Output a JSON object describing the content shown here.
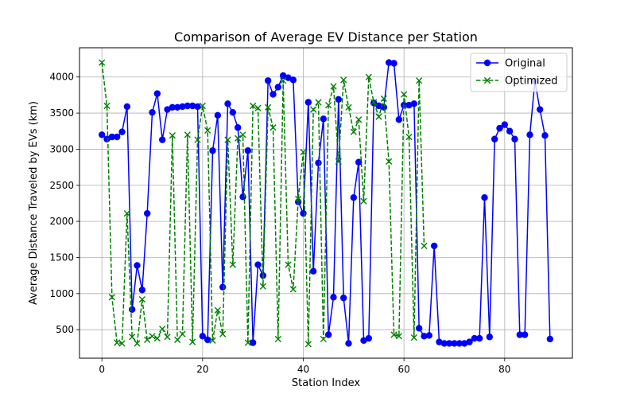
{
  "chart_data": {
    "type": "line",
    "title": "Comparison of Average EV Distance per Station",
    "xlabel": "Station Index",
    "ylabel": "Average Distance Traveled by EVs (km)",
    "xlim": [
      -4.45,
      93.45
    ],
    "ylim": [
      105,
      4405
    ],
    "xticks": [
      0,
      20,
      40,
      60,
      80
    ],
    "yticks": [
      500,
      1000,
      1500,
      2000,
      2500,
      3000,
      3500,
      4000
    ],
    "grid": true,
    "legend_position": "upper right",
    "series": [
      {
        "name": "Original",
        "color": "#0000ff",
        "linestyle": "solid",
        "marker": "circle",
        "x": [
          0,
          1,
          2,
          3,
          4,
          5,
          6,
          7,
          8,
          9,
          10,
          11,
          12,
          13,
          14,
          15,
          16,
          17,
          18,
          19,
          20,
          21,
          22,
          23,
          24,
          25,
          26,
          27,
          28,
          29,
          30,
          31,
          32,
          33,
          34,
          35,
          36,
          37,
          38,
          39,
          40,
          41,
          42,
          43,
          44,
          45,
          46,
          47,
          48,
          49,
          50,
          51,
          52,
          53,
          54,
          55,
          56,
          57,
          58,
          59,
          60,
          61,
          62,
          63,
          64,
          65,
          66,
          67,
          68,
          69,
          70,
          71,
          72,
          73,
          74,
          75,
          76,
          77,
          78,
          79,
          80,
          81,
          82,
          83,
          84,
          85,
          86,
          87,
          88,
          89
        ],
        "values": [
          3200,
          3140,
          3170,
          3170,
          3240,
          3590,
          780,
          1390,
          1050,
          2110,
          3510,
          3770,
          3130,
          3550,
          3580,
          3580,
          3590,
          3600,
          3600,
          3590,
          410,
          360,
          2980,
          3470,
          1090,
          3630,
          3510,
          3300,
          2340,
          2980,
          320,
          1400,
          1250,
          3950,
          3760,
          3860,
          4020,
          3990,
          3960,
          2270,
          2110,
          3650,
          1310,
          2810,
          3420,
          430,
          950,
          3690,
          940,
          310,
          2330,
          2820,
          350,
          380,
          3640,
          3600,
          3580,
          4200,
          4190,
          3410,
          3610,
          3610,
          3630,
          520,
          410,
          420,
          1660,
          330,
          310,
          310,
          310,
          310,
          310,
          330,
          380,
          380,
          2330,
          400,
          3140,
          3290,
          3340,
          3250,
          3140,
          430,
          430,
          3200,
          3940,
          3550,
          3190,
          370
        ]
      },
      {
        "name": "Optimized",
        "color": "#008000",
        "linestyle": "dashed",
        "marker": "x",
        "x": [
          0,
          1,
          2,
          3,
          4,
          5,
          6,
          7,
          8,
          9,
          10,
          11,
          12,
          13,
          14,
          15,
          16,
          17,
          18,
          19,
          20,
          21,
          22,
          23,
          24,
          25,
          26,
          27,
          28,
          29,
          30,
          31,
          32,
          33,
          34,
          35,
          36,
          37,
          38,
          39,
          40,
          41,
          42,
          43,
          44,
          45,
          46,
          47,
          48,
          49,
          50,
          51,
          52,
          53,
          54,
          55,
          56,
          57,
          58,
          59,
          60,
          61,
          62,
          63,
          64
        ],
        "values": [
          4200,
          3600,
          950,
          320,
          310,
          2110,
          400,
          310,
          920,
          360,
          410,
          380,
          510,
          400,
          3190,
          360,
          440,
          3200,
          330,
          3130,
          3600,
          3260,
          350,
          770,
          440,
          3130,
          1400,
          3150,
          3200,
          320,
          3600,
          3570,
          1100,
          3580,
          3300,
          370,
          3950,
          1400,
          1060,
          2310,
          2960,
          300,
          3550,
          3650,
          370,
          3610,
          3870,
          2830,
          3960,
          3580,
          3240,
          3410,
          2280,
          4000,
          3650,
          3450,
          3700,
          2830,
          430,
          410,
          3760,
          3170,
          390,
          3950,
          1660
        ]
      }
    ]
  }
}
